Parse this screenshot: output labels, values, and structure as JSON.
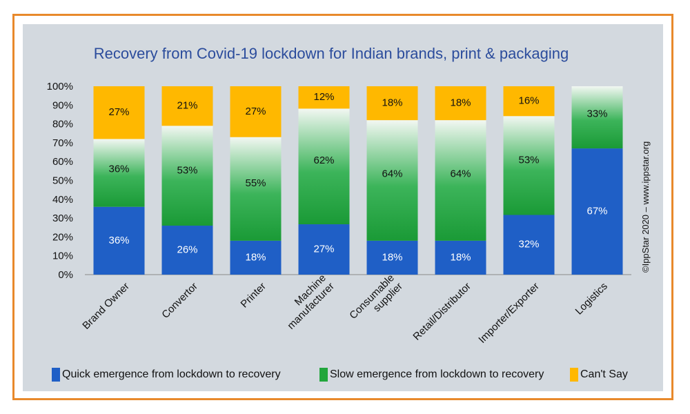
{
  "chart_data": {
    "type": "bar",
    "stacked": true,
    "title": "Recovery from Covid-19 lockdown for Indian brands, print & packaging",
    "categories": [
      [
        "Brand Owner"
      ],
      [
        "Convertor"
      ],
      [
        "Printer"
      ],
      [
        "Machine",
        "manufacturer"
      ],
      [
        "Consumable",
        "supplier"
      ],
      [
        "Retail/Distributor"
      ],
      [
        "Importer/Exporter"
      ],
      [
        "Logistics"
      ]
    ],
    "series": [
      {
        "name": "Quick emergence from lockdown to recovery",
        "color": "#1F5FC6",
        "label_color": "#ffffff",
        "values": [
          36,
          26,
          18,
          27,
          18,
          18,
          32,
          67
        ]
      },
      {
        "name": "Slow emergence from lockdown to recovery",
        "color": "#22A63C",
        "label_color": "#111111",
        "values": [
          36,
          53,
          55,
          62,
          64,
          64,
          53,
          33
        ]
      },
      {
        "name": "Can't Say",
        "color": "#FFB800",
        "label_color": "#111111",
        "values": [
          27,
          21,
          27,
          12,
          18,
          18,
          16,
          null
        ]
      }
    ],
    "ylim": [
      0,
      100
    ],
    "yticks": [
      "0%",
      "10%",
      "20%",
      "30%",
      "40%",
      "50%",
      "60%",
      "70%",
      "80%",
      "90%",
      "100%"
    ],
    "legend_position": "bottom",
    "side_note": "©IppStar 2020 – www.ippstar.org"
  }
}
